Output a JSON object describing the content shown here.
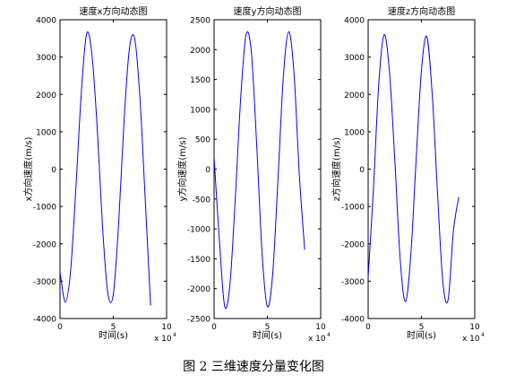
{
  "figure_caption": "图 2  三维速度分量变化图",
  "chart_data": [
    {
      "type": "line",
      "title": "速度x方向动态图",
      "xlabel": "时间(s)",
      "ylabel": "x方向速度(m/s)",
      "x_exponent_label": "x 10",
      "x_exponent_power": "4",
      "xlim": [
        0,
        10
      ],
      "ylim": [
        -4000,
        4000
      ],
      "xticks": [
        0,
        5,
        10
      ],
      "yticks": [
        -4000,
        -3000,
        -2000,
        -1000,
        0,
        1000,
        2000,
        3000,
        4000
      ],
      "color": "#0000ff",
      "series": [
        {
          "x": [
            0.0,
            0.5,
            1.0,
            1.5,
            2.0,
            2.5,
            3.0,
            3.5,
            4.0,
            4.5,
            5.0,
            5.5,
            6.0,
            6.5,
            7.0,
            7.5,
            8.0,
            8.5
          ],
          "y": [
            -2750,
            -3560,
            -2700,
            -450,
            2050,
            3630,
            3050,
            1050,
            -1600,
            -3350,
            -3350,
            -1450,
            1250,
            3200,
            3500,
            1900,
            -850,
            -3650
          ]
        }
      ]
    },
    {
      "type": "line",
      "title": "速度y方向动态图",
      "xlabel": "时间(s)",
      "ylabel": "y方向速度(m/s)",
      "x_exponent_label": "x 10",
      "x_exponent_power": "4",
      "xlim": [
        0,
        10
      ],
      "ylim": [
        -2500,
        2500
      ],
      "xticks": [
        0,
        5,
        10
      ],
      "yticks": [
        -2500,
        -2000,
        -1500,
        -1000,
        -500,
        0,
        500,
        1000,
        1500,
        2000,
        2500
      ],
      "color": "#0000ff",
      "series": [
        {
          "x": [
            0.0,
            0.5,
            1.0,
            1.5,
            2.0,
            2.5,
            3.0,
            3.5,
            4.0,
            4.5,
            5.0,
            5.5,
            6.0,
            6.5,
            7.0,
            7.5,
            8.0,
            8.5
          ],
          "y": [
            200,
            -1200,
            -2300,
            -1900,
            -450,
            1200,
            2250,
            1950,
            400,
            -1400,
            -2300,
            -1750,
            -150,
            1550,
            2300,
            1600,
            -100,
            -1350
          ]
        }
      ]
    },
    {
      "type": "line",
      "title": "速度z方向动态图",
      "xlabel": "时间(s)",
      "ylabel": "z方向速度(m/s)",
      "x_exponent_label": "x 10",
      "x_exponent_power": "4",
      "xlim": [
        0,
        10
      ],
      "ylim": [
        -4000,
        4000
      ],
      "xticks": [
        0,
        5,
        10
      ],
      "yticks": [
        -4000,
        -3000,
        -2000,
        -1000,
        0,
        1000,
        2000,
        3000,
        4000
      ],
      "color": "#0000ff",
      "series": [
        {
          "x": [
            0.0,
            0.5,
            1.0,
            1.5,
            2.0,
            2.5,
            3.0,
            3.5,
            4.0,
            4.5,
            5.0,
            5.5,
            6.0,
            6.5,
            7.0,
            7.5,
            8.0,
            8.5
          ],
          "y": [
            -2900,
            -500,
            2300,
            3600,
            2600,
            250,
            -2400,
            -3550,
            -2300,
            250,
            2650,
            3550,
            2050,
            -600,
            -3000,
            -3500,
            -1650,
            -750
          ]
        }
      ]
    }
  ]
}
